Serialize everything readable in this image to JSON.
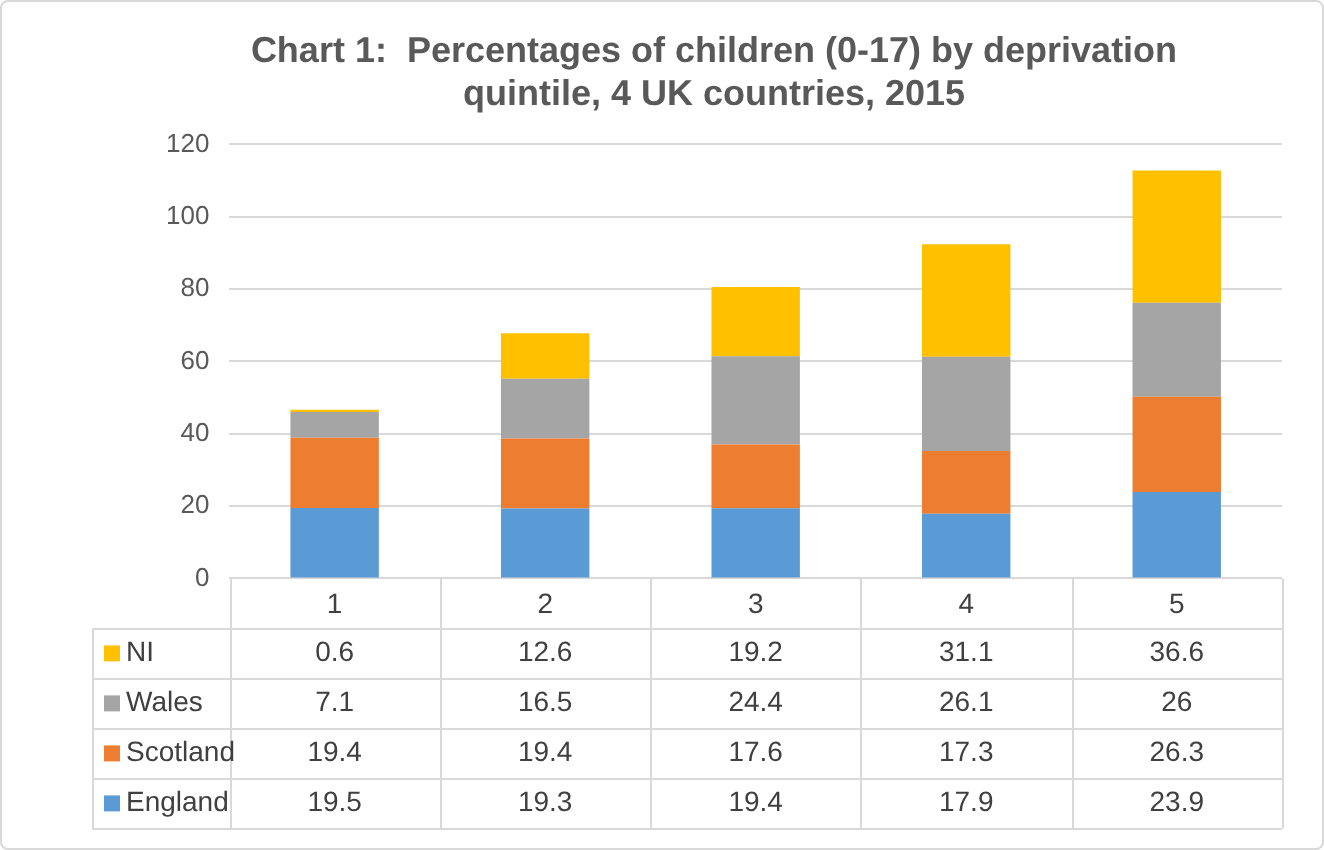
{
  "chart_data": {
    "type": "bar",
    "title": "Chart 1:  Percentages of children (0-17) by deprivation quintile, 4 UK countries, 2015",
    "categories": [
      "1",
      "2",
      "3",
      "4",
      "5"
    ],
    "stacked": true,
    "series": [
      {
        "name": "England",
        "color": "#5b9bd5",
        "values": [
          19.5,
          19.3,
          19.4,
          17.9,
          23.9
        ]
      },
      {
        "name": "Scotland",
        "color": "#ed7d31",
        "values": [
          19.4,
          19.4,
          17.6,
          17.3,
          26.3
        ]
      },
      {
        "name": "Wales",
        "color": "#a5a5a5",
        "values": [
          7.1,
          16.5,
          24.4,
          26.1,
          26
        ]
      },
      {
        "name": "NI",
        "color": "#ffc000",
        "values": [
          0.6,
          12.6,
          19.2,
          31.1,
          36.6
        ]
      }
    ],
    "ylim": [
      0,
      120
    ],
    "yticks": [
      0,
      20,
      40,
      60,
      80,
      100,
      120
    ],
    "grid": "y",
    "legend": "bottom",
    "data_labels": true
  }
}
